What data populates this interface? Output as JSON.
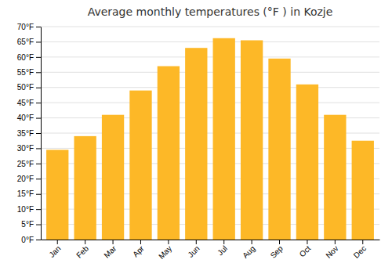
{
  "chart_data": {
    "type": "bar",
    "title": "Average monthly temperatures (°F ) in Kozje",
    "categories": [
      "Jan",
      "Feb",
      "Mar",
      "Apr",
      "May",
      "Jun",
      "Jul",
      "Aug",
      "Sep",
      "Oct",
      "Nov",
      "Dec"
    ],
    "values": [
      29.5,
      34.0,
      41.0,
      49.0,
      57.0,
      63.0,
      66.2,
      65.5,
      59.5,
      51.0,
      41.0,
      32.5
    ],
    "color": "#FDB827",
    "ylim": [
      0,
      70
    ],
    "yticks": [
      {
        "value": 0,
        "label": "0°F"
      },
      {
        "value": 5,
        "label": "5°F"
      },
      {
        "value": 10,
        "label": "10°F"
      },
      {
        "value": 15,
        "label": "15°F"
      },
      {
        "value": 20,
        "label": "20°F"
      },
      {
        "value": 25,
        "label": "25°F"
      },
      {
        "value": 30,
        "label": "30°F"
      },
      {
        "value": 35,
        "label": "35°F"
      },
      {
        "value": 40,
        "label": "40°F"
      },
      {
        "value": 45,
        "label": "45°F"
      },
      {
        "value": 50,
        "label": "50°F"
      },
      {
        "value": 55,
        "label": "55°F"
      },
      {
        "value": 60,
        "label": "60°F"
      },
      {
        "value": 65,
        "label": "65°F"
      },
      {
        "value": 70,
        "label": "70°F"
      }
    ],
    "grid": true
  }
}
